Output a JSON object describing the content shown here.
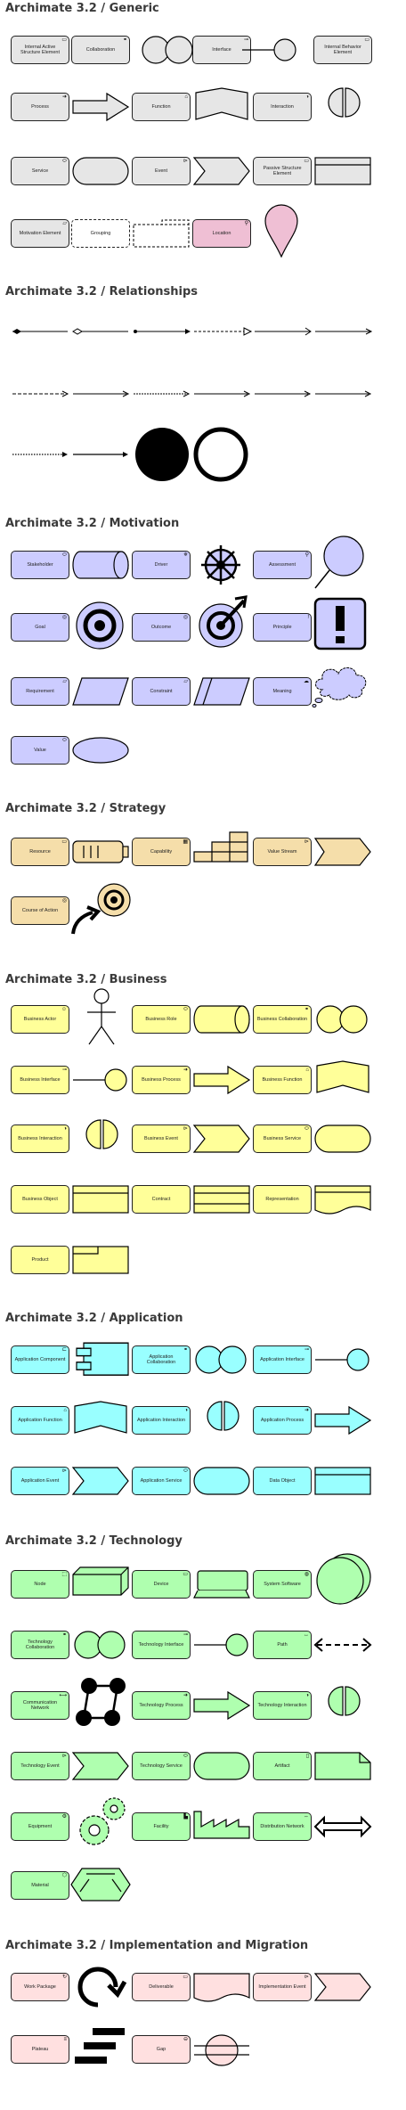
{
  "colors": {
    "generic": "#e6e6e6",
    "motivation": "#ccccff",
    "strategy": "#f5deaa",
    "business": "#ffff99",
    "application": "#99ffff",
    "technology": "#afffaf",
    "implementation": "#ffe0e0",
    "location": "#efbfd4",
    "stroke": "#000000"
  },
  "sections": [
    {
      "title": "Archimate 3.2 / Generic",
      "elements": [
        {
          "label": "Internal Active Structure Element",
          "icon": "generic-icon",
          "fill": "generic"
        },
        {
          "label": "Collaboration",
          "icon": "collaboration-icon",
          "fill": "generic"
        },
        {
          "label": "Interface",
          "icon": "interface-icon",
          "fill": "generic"
        },
        {
          "label": "Internal Behavior Element",
          "icon": "behavior-icon",
          "fill": "generic"
        },
        {
          "label": "Process",
          "icon": "process-icon",
          "fill": "generic"
        },
        {
          "label": "Function",
          "icon": "function-icon",
          "fill": "generic"
        },
        {
          "label": "Interaction",
          "icon": "interaction-icon",
          "fill": "generic"
        },
        {
          "label": "Service",
          "icon": "service-icon",
          "fill": "generic"
        },
        {
          "label": "Event",
          "icon": "event-icon",
          "fill": "generic"
        },
        {
          "label": "Passive Structure Element",
          "icon": "passive-icon",
          "fill": "generic"
        },
        {
          "label": "Motivation Element",
          "icon": "motivation-icon",
          "fill": "generic"
        },
        {
          "label": "Grouping",
          "icon": "grouping-icon",
          "fill": "generic"
        },
        {
          "label": "Location",
          "icon": "location-icon",
          "fill": "location"
        }
      ]
    },
    {
      "title": "Archimate 3.2 / Relationships",
      "elements": []
    },
    {
      "title": "Archimate 3.2 / Motivation",
      "elements": [
        {
          "label": "Stakeholder",
          "icon": "stakeholder-icon",
          "fill": "motivation"
        },
        {
          "label": "Driver",
          "icon": "driver-icon",
          "fill": "motivation"
        },
        {
          "label": "Assessment",
          "icon": "assessment-icon",
          "fill": "motivation"
        },
        {
          "label": "Goal",
          "icon": "goal-icon",
          "fill": "motivation"
        },
        {
          "label": "Outcome",
          "icon": "outcome-icon",
          "fill": "motivation"
        },
        {
          "label": "Principle",
          "icon": "principle-icon",
          "fill": "motivation"
        },
        {
          "label": "Requirement",
          "icon": "requirement-icon",
          "fill": "motivation"
        },
        {
          "label": "Constraint",
          "icon": "constraint-icon",
          "fill": "motivation"
        },
        {
          "label": "Meaning",
          "icon": "meaning-icon",
          "fill": "motivation"
        },
        {
          "label": "Value",
          "icon": "value-icon",
          "fill": "motivation"
        }
      ]
    },
    {
      "title": "Archimate 3.2 / Strategy",
      "elements": [
        {
          "label": "Resource",
          "icon": "resource-icon",
          "fill": "strategy"
        },
        {
          "label": "Capability",
          "icon": "capability-icon",
          "fill": "strategy"
        },
        {
          "label": "Value Stream",
          "icon": "value-stream-icon",
          "fill": "strategy"
        },
        {
          "label": "Course of Action",
          "icon": "course-of-action-icon",
          "fill": "strategy"
        }
      ]
    },
    {
      "title": "Archimate 3.2 / Business",
      "elements": [
        {
          "label": "Business Actor",
          "icon": "actor-icon",
          "fill": "business"
        },
        {
          "label": "Business Role",
          "icon": "role-icon",
          "fill": "business"
        },
        {
          "label": "Business Collaboration",
          "icon": "collaboration-icon",
          "fill": "business"
        },
        {
          "label": "Business Interface",
          "icon": "interface-icon",
          "fill": "business"
        },
        {
          "label": "Business Process",
          "icon": "process-icon",
          "fill": "business"
        },
        {
          "label": "Business Function",
          "icon": "function-icon",
          "fill": "business"
        },
        {
          "label": "Business Interaction",
          "icon": "interaction-icon",
          "fill": "business"
        },
        {
          "label": "Business Event",
          "icon": "event-icon",
          "fill": "business"
        },
        {
          "label": "Business Service",
          "icon": "service-icon",
          "fill": "business"
        },
        {
          "label": "Business Object",
          "icon": "object-icon",
          "fill": "business"
        },
        {
          "label": "Contract",
          "icon": "contract-icon",
          "fill": "business"
        },
        {
          "label": "Representation",
          "icon": "representation-icon",
          "fill": "business"
        },
        {
          "label": "Product",
          "icon": "product-icon",
          "fill": "business"
        }
      ]
    },
    {
      "title": "Archimate 3.2 / Application",
      "elements": [
        {
          "label": "Application Component",
          "icon": "component-icon",
          "fill": "application"
        },
        {
          "label": "Application Collaboration",
          "icon": "collaboration-icon",
          "fill": "application"
        },
        {
          "label": "Application Interface",
          "icon": "interface-icon",
          "fill": "application"
        },
        {
          "label": "Application Function",
          "icon": "function-icon",
          "fill": "application"
        },
        {
          "label": "Application Interaction",
          "icon": "interaction-icon",
          "fill": "application"
        },
        {
          "label": "Application Process",
          "icon": "process-icon",
          "fill": "application"
        },
        {
          "label": "Application Event",
          "icon": "event-icon",
          "fill": "application"
        },
        {
          "label": "Application Service",
          "icon": "service-icon",
          "fill": "application"
        },
        {
          "label": "Data Object",
          "icon": "object-icon",
          "fill": "application"
        }
      ]
    },
    {
      "title": "Archimate 3.2 / Technology",
      "elements": [
        {
          "label": "Node",
          "icon": "node-icon",
          "fill": "technology"
        },
        {
          "label": "Device",
          "icon": "device-icon",
          "fill": "technology"
        },
        {
          "label": "System Software",
          "icon": "system-software-icon",
          "fill": "technology"
        },
        {
          "label": "Technology Collaboration",
          "icon": "collaboration-icon",
          "fill": "technology"
        },
        {
          "label": "Technology Interface",
          "icon": "interface-icon",
          "fill": "technology"
        },
        {
          "label": "Path",
          "icon": "path-icon",
          "fill": "technology"
        },
        {
          "label": "Communication Network",
          "icon": "network-icon",
          "fill": "technology"
        },
        {
          "label": "Technology Process",
          "icon": "process-icon",
          "fill": "technology"
        },
        {
          "label": "Technology Interaction",
          "icon": "interaction-icon",
          "fill": "technology"
        },
        {
          "label": "Technology Event",
          "icon": "event-icon",
          "fill": "technology"
        },
        {
          "label": "Technology Service",
          "icon": "service-icon",
          "fill": "technology"
        },
        {
          "label": "Artifact",
          "icon": "artifact-icon",
          "fill": "technology"
        },
        {
          "label": "Equipment",
          "icon": "equipment-icon",
          "fill": "technology"
        },
        {
          "label": "Facility",
          "icon": "facility-icon",
          "fill": "technology"
        },
        {
          "label": "Distribution Network",
          "icon": "distribution-icon",
          "fill": "technology"
        },
        {
          "label": "Material",
          "icon": "material-icon",
          "fill": "technology"
        }
      ]
    },
    {
      "title": "Archimate 3.2 / Implementation and Migration",
      "elements": [
        {
          "label": "Work Package",
          "icon": "work-package-icon",
          "fill": "implementation"
        },
        {
          "label": "Deliverable",
          "icon": "deliverable-icon",
          "fill": "implementation"
        },
        {
          "label": "Implementation Event",
          "icon": "event-icon",
          "fill": "implementation"
        },
        {
          "label": "Plateau",
          "icon": "plateau-icon",
          "fill": "implementation"
        },
        {
          "label": "Gap",
          "icon": "gap-icon",
          "fill": "implementation"
        }
      ]
    }
  ]
}
